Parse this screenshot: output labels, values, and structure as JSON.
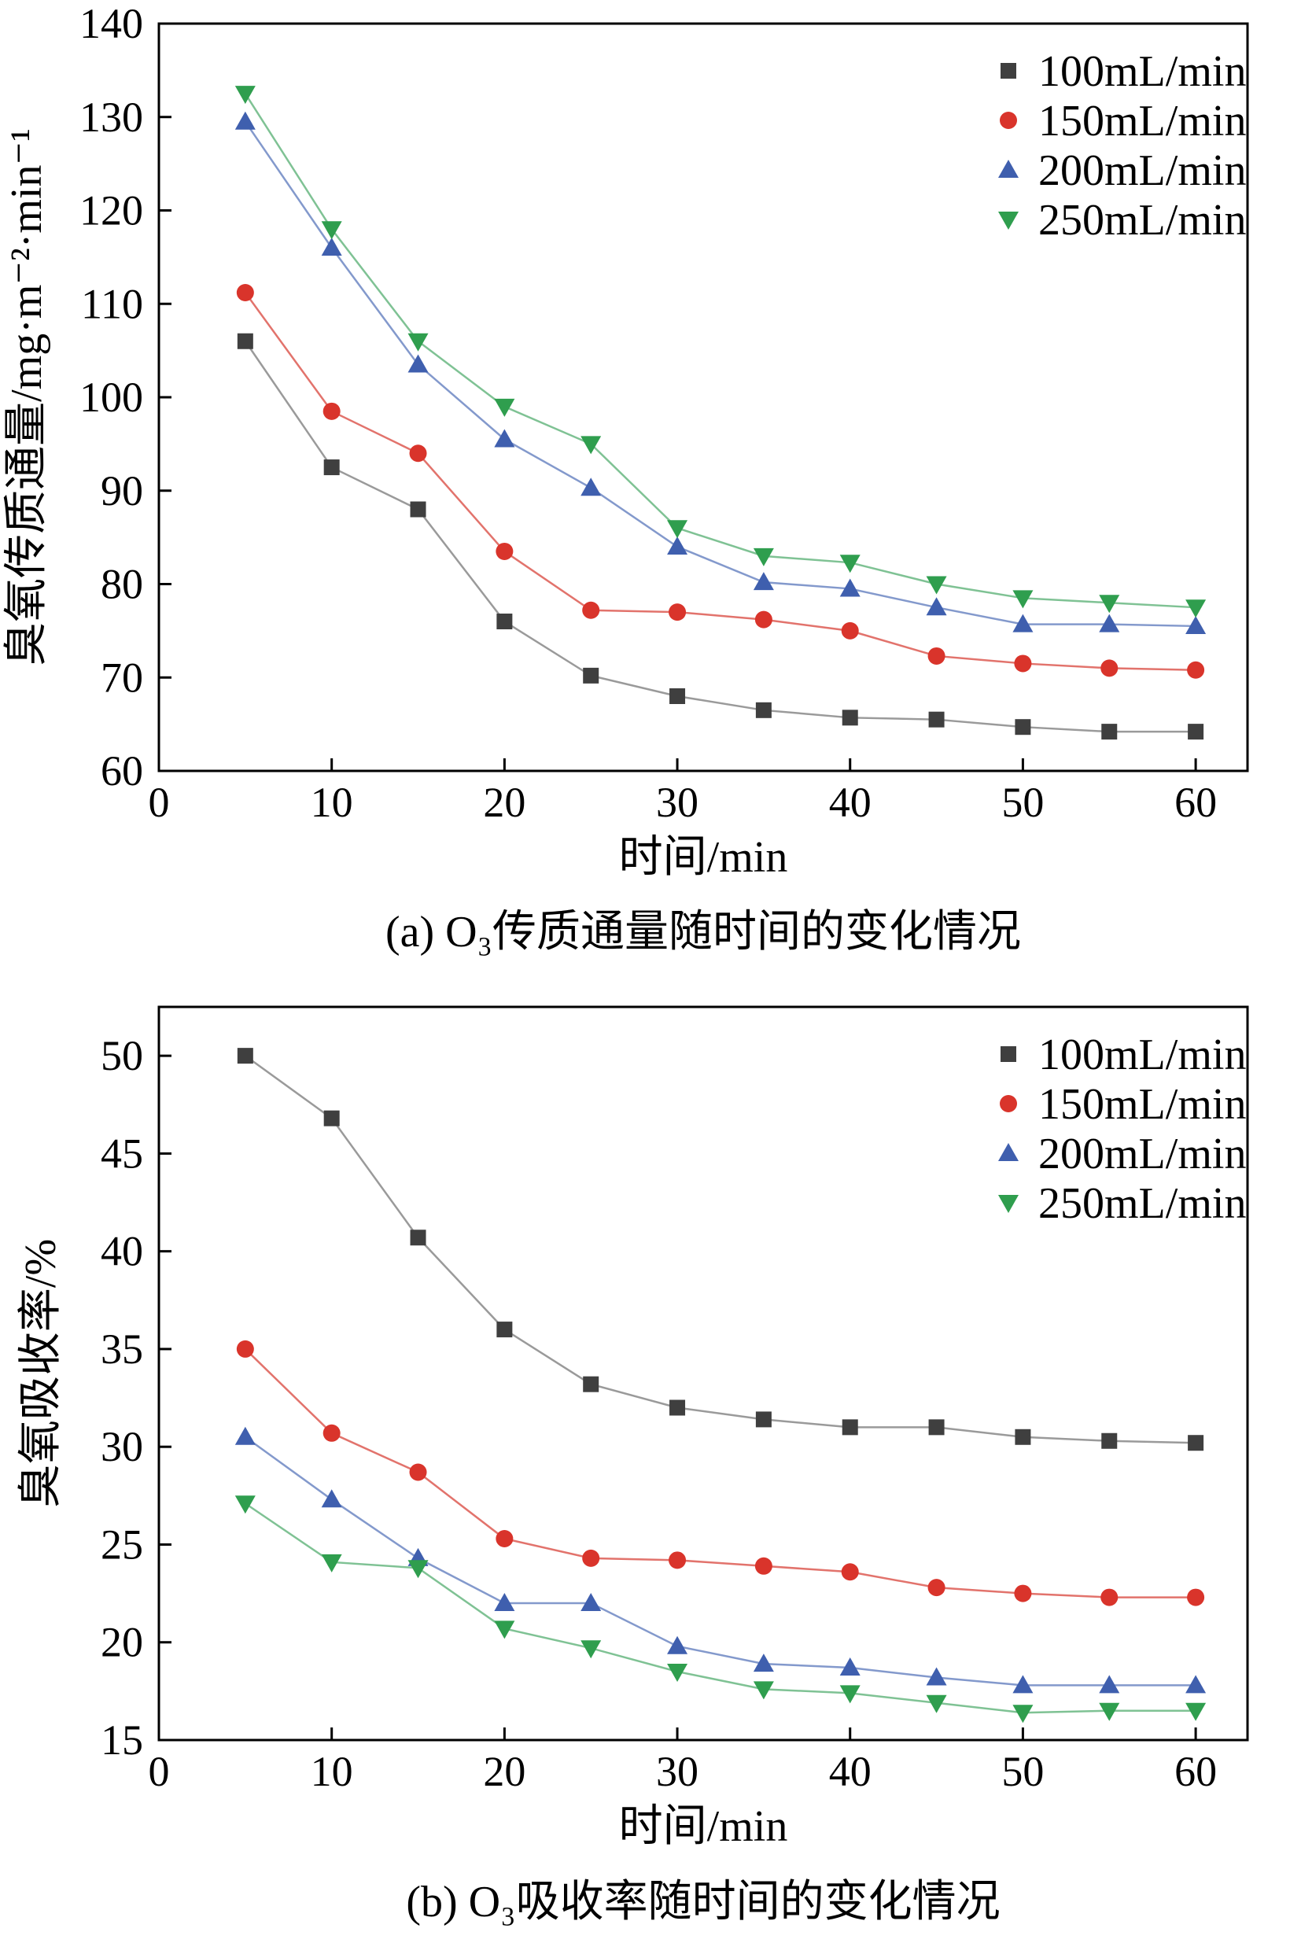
{
  "figure": {
    "background": "#ffffff"
  },
  "chart_data": [
    {
      "type": "line",
      "caption": "(a) O₃传质通量随时间的变化情况",
      "xlabel": "时间/min",
      "ylabel": "臭氧传质通量/mg·m⁻²·min⁻¹",
      "xlim": [
        0,
        63
      ],
      "ylim": [
        60,
        140
      ],
      "xticks": [
        0,
        10,
        20,
        30,
        40,
        50,
        60
      ],
      "yticks": [
        60,
        70,
        80,
        90,
        100,
        110,
        120,
        130,
        140
      ],
      "grid": false,
      "legend_position": "top-right-inside",
      "x": [
        5,
        10,
        15,
        20,
        25,
        30,
        35,
        40,
        45,
        50,
        55,
        60
      ],
      "series": [
        {
          "name": "100mL/min",
          "marker": "square",
          "color": "#3f3f3f",
          "line_color": "#9a9a9a",
          "values": [
            106,
            92.5,
            88,
            76,
            70.2,
            68,
            66.5,
            65.7,
            65.5,
            64.7,
            64.2,
            64.2
          ]
        },
        {
          "name": "150mL/min",
          "marker": "circle",
          "color": "#d9342b",
          "line_color": "#e2736c",
          "values": [
            111.2,
            98.5,
            94,
            83.5,
            77.2,
            77,
            76.2,
            75,
            72.3,
            71.5,
            71,
            70.8
          ]
        },
        {
          "name": "200mL/min",
          "marker": "triangle-up",
          "color": "#3f5fae",
          "line_color": "#8399cc",
          "values": [
            129.5,
            116,
            103.5,
            95.5,
            90.3,
            84,
            80.2,
            79.5,
            77.5,
            75.7,
            75.7,
            75.5
          ]
        },
        {
          "name": "250mL/min",
          "marker": "triangle-down",
          "color": "#2f9e4e",
          "line_color": "#7fc294",
          "values": [
            132.5,
            118,
            106,
            99,
            95,
            86,
            83,
            82.3,
            80,
            78.5,
            78,
            77.5
          ]
        }
      ]
    },
    {
      "type": "line",
      "caption": "(b) O₃吸收率随时间的变化情况",
      "xlabel": "时间/min",
      "ylabel": "臭氧吸收率/%",
      "xlim": [
        0,
        63
      ],
      "ylim": [
        15,
        52.5
      ],
      "xticks": [
        0,
        10,
        20,
        30,
        40,
        50,
        60
      ],
      "yticks": [
        15,
        20,
        25,
        30,
        35,
        40,
        45,
        50
      ],
      "grid": false,
      "legend_position": "top-right-inside",
      "x": [
        5,
        10,
        15,
        20,
        25,
        30,
        35,
        40,
        45,
        50,
        55,
        60
      ],
      "series": [
        {
          "name": "100mL/min",
          "marker": "square",
          "color": "#3f3f3f",
          "line_color": "#9a9a9a",
          "values": [
            50,
            46.8,
            40.7,
            36,
            33.2,
            32,
            31.4,
            31,
            31,
            30.5,
            30.3,
            30.2
          ]
        },
        {
          "name": "150mL/min",
          "marker": "circle",
          "color": "#d9342b",
          "line_color": "#e2736c",
          "values": [
            35,
            30.7,
            28.7,
            25.3,
            24.3,
            24.2,
            23.9,
            23.6,
            22.8,
            22.5,
            22.3,
            22.3
          ]
        },
        {
          "name": "200mL/min",
          "marker": "triangle-up",
          "color": "#3f5fae",
          "line_color": "#8399cc",
          "values": [
            30.5,
            27.3,
            24.3,
            22,
            22,
            19.8,
            18.9,
            18.7,
            18.2,
            17.8,
            17.8,
            17.8
          ]
        },
        {
          "name": "250mL/min",
          "marker": "triangle-down",
          "color": "#2f9e4e",
          "line_color": "#7fc294",
          "values": [
            27.1,
            24.1,
            23.8,
            20.7,
            19.7,
            18.5,
            17.6,
            17.4,
            16.9,
            16.4,
            16.5,
            16.5
          ]
        }
      ]
    }
  ]
}
